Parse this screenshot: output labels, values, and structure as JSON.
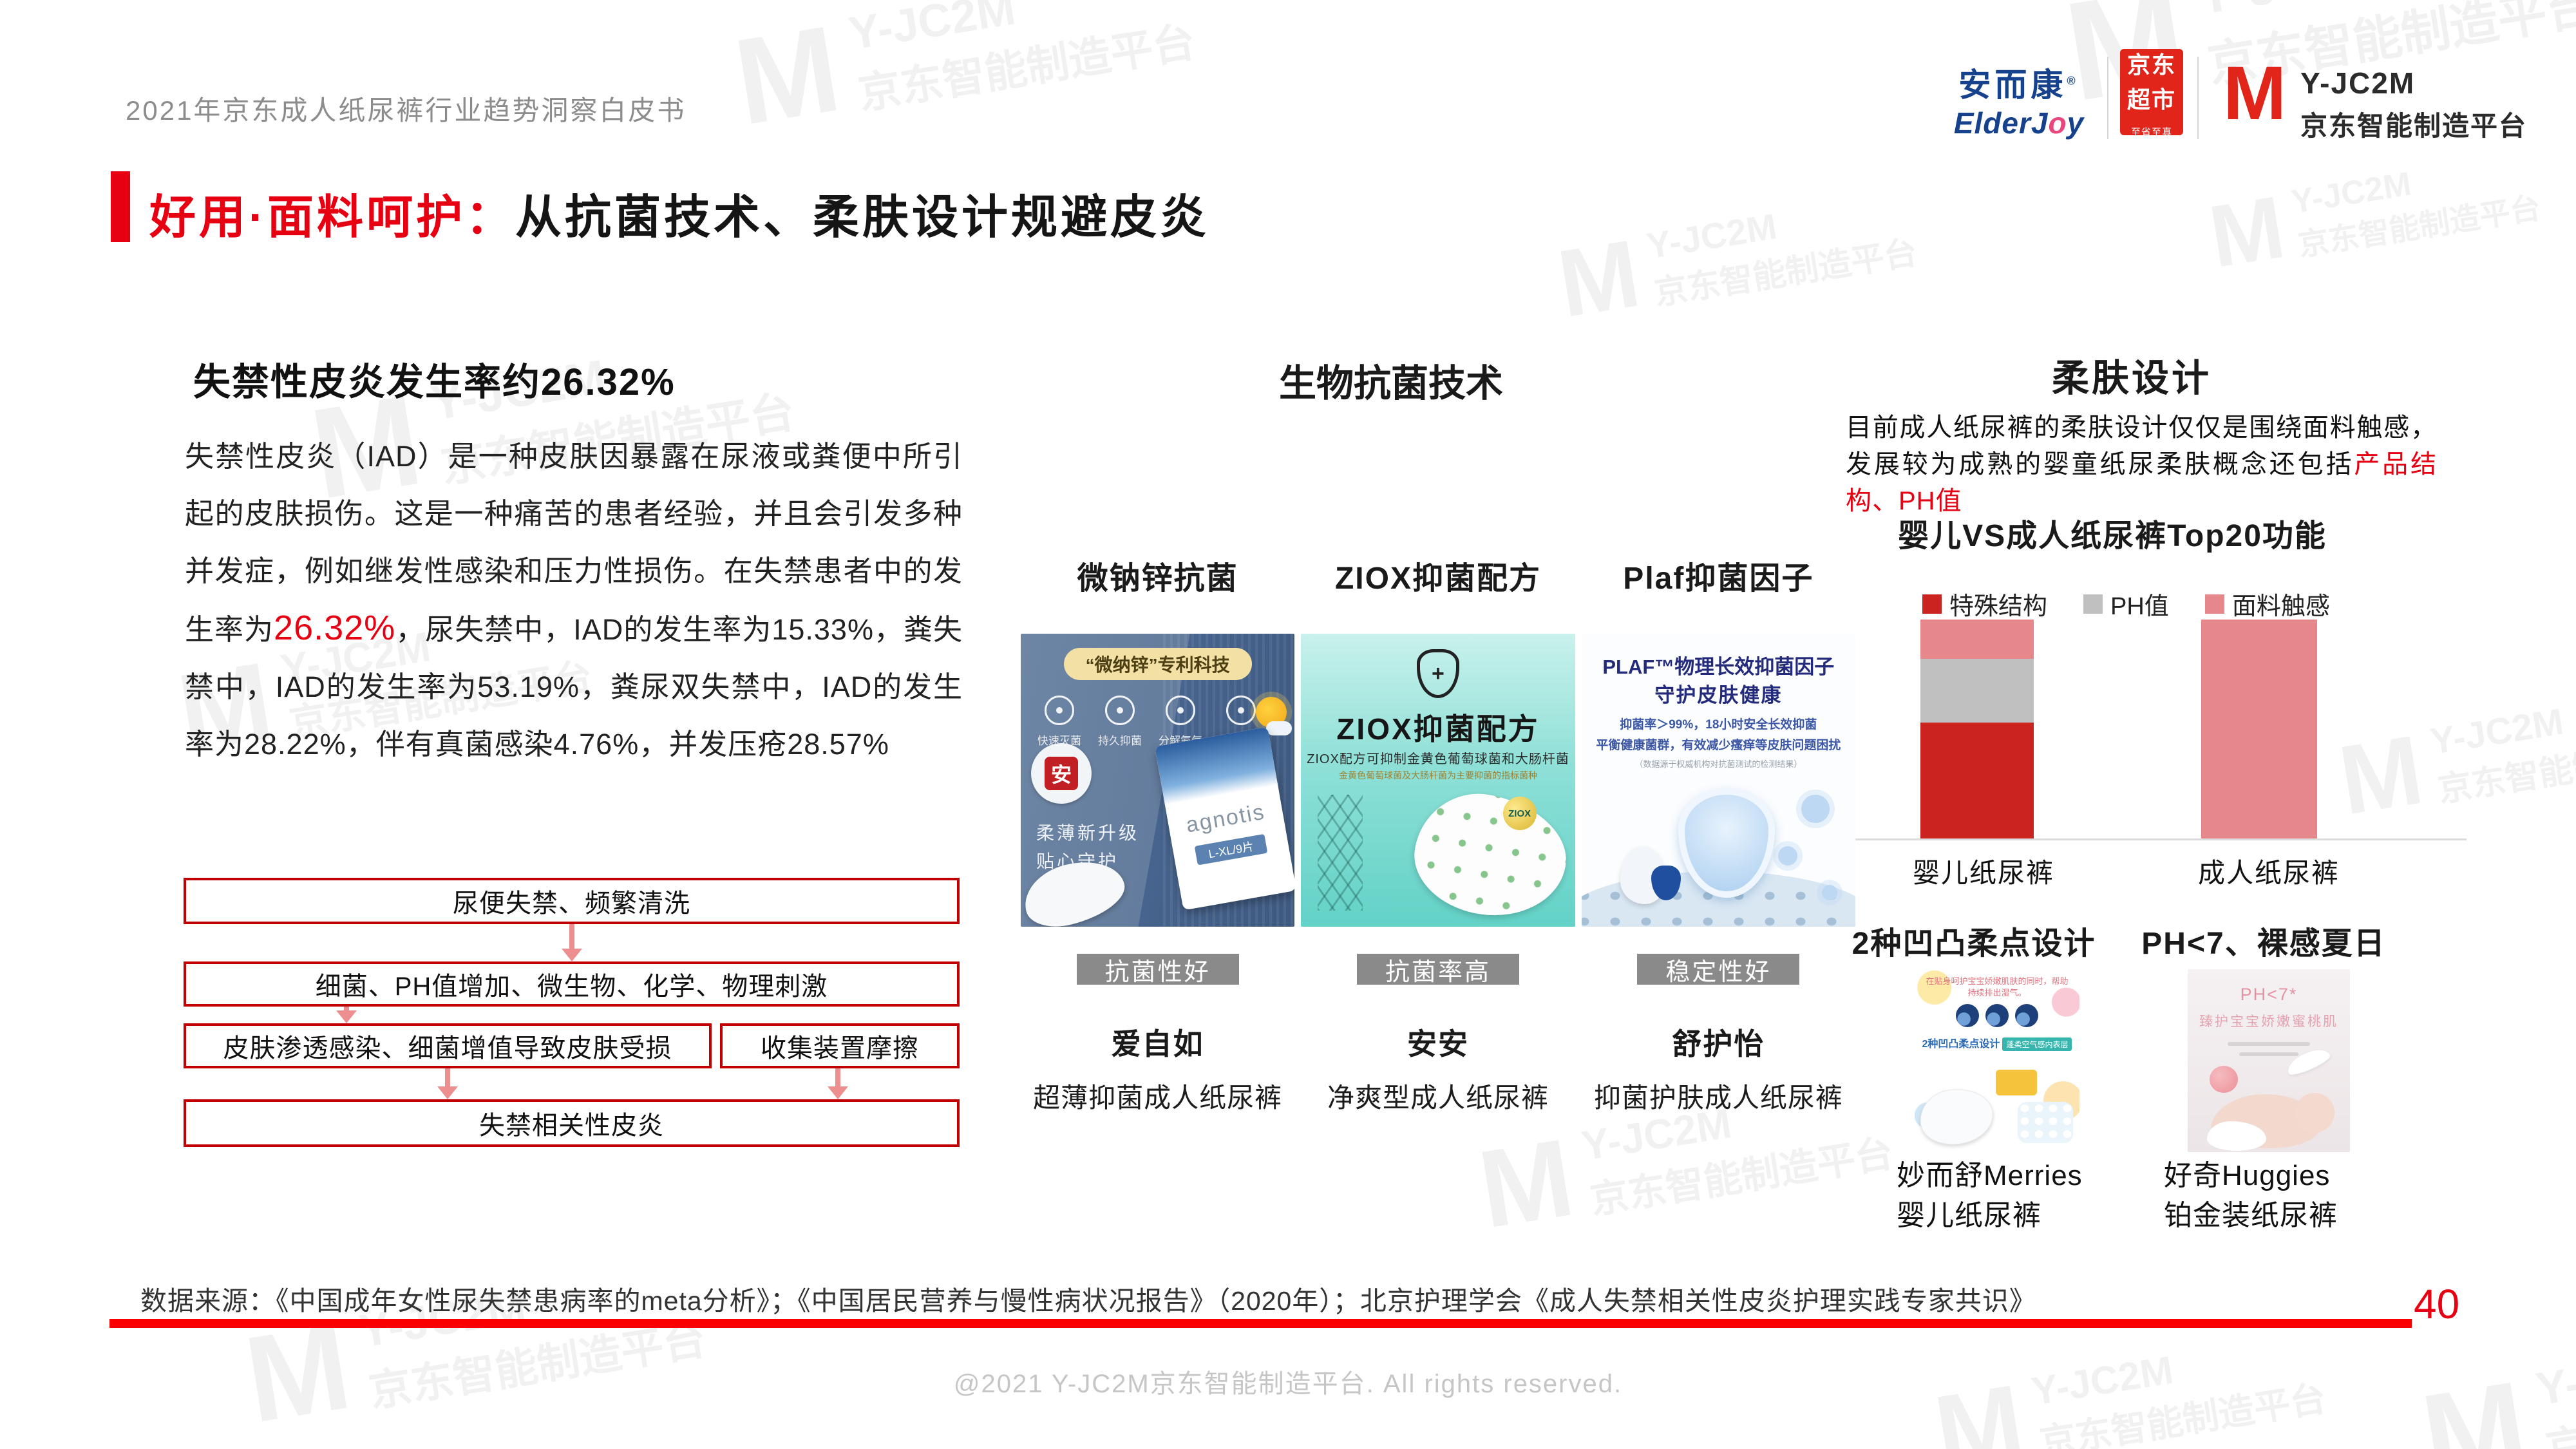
{
  "header": {
    "doc_title": "2021年京东成人纸尿裤行业趋势洞察白皮书"
  },
  "logos": {
    "elderjoy": {
      "cn": "安而康",
      "reg": "®",
      "en1": "ElderJ",
      "heart_o": "o",
      "en2": "y"
    },
    "jd_market": {
      "top": "京东",
      "mid": "超市",
      "bottom": "至省至真"
    },
    "yjc2m": {
      "mark": "M",
      "brand": "Y-JC2M",
      "name": "京东智能制造平台"
    }
  },
  "watermark": {
    "mark": "M",
    "brand": "Y-JC2M",
    "name": "京东智能制造平台"
  },
  "title": {
    "highlight": "好用·面料呵护：",
    "rest": "从抗菌技术、柔肤设计规避皮炎"
  },
  "left": {
    "heading": "失禁性皮炎发生率约26.32%",
    "para_before": "失禁性皮炎（IAD）是一种皮肤因暴露在尿液或粪便中所引起的皮肤损伤。这是一种痛苦的患者经验，并且会引发多种并发症，例如继发性感染和压力性损伤。在失禁患者中的发生率为",
    "para_red": "26.32%",
    "para_after": "，尿失禁中，IAD的发生率为15.33%，粪失禁中，IAD的发生率为53.19%，粪尿双失禁中，IAD的发生率为28.22%，伴有真菌感染4.76%，并发压疮28.57%",
    "flow": [
      "尿便失禁、频繁清洗",
      "细菌、PH值增加、微生物、化学、物理刺激",
      "皮肤渗透感染、细菌增值导致皮肤受损",
      "收集装置摩擦",
      "失禁相关性皮炎"
    ]
  },
  "middle": {
    "heading": "生物抗菌技术",
    "columns": [
      {
        "label": "微钠锌抗菌",
        "tag": "抗菌性好",
        "name": "爱自如",
        "desc": "超薄抑菌成人纸尿裤",
        "poster": {
          "badge": "“微纳锌”专利科技",
          "icons": [
            "快速灭菌",
            "持久抑菌",
            "分解氨气",
            "消除异味"
          ],
          "seal": "安",
          "slogan1": "柔薄新升级",
          "slogan2": "贴心守护",
          "brand": "agnotis",
          "size": "L-XL/9片"
        }
      },
      {
        "label": "ZIOX抑菌配方",
        "tag": "抗菌率高",
        "name": "安安",
        "desc": "净爽型成人纸尿裤",
        "poster": {
          "shield_plus": "+",
          "title": "ZIOX抑菌配方",
          "sub": "ZIOX配方可抑制金黄色葡萄球菌和大肠杆菌",
          "note": "金黄色葡萄球菌及大肠杆菌为主要抑菌的指标菌种",
          "dot": "ZIOX"
        }
      },
      {
        "label": "Plaf抑菌因子",
        "tag": "稳定性好",
        "name": "舒护怡",
        "desc": "抑菌护肤成人纸尿裤",
        "poster": {
          "title1": "PLAF™物理长效抑菌因子",
          "title2": "守护皮肤健康",
          "sub1": "抑菌率＞99%，18小时安全长效抑菌",
          "sub2": "平衡健康菌群，有效减少瘙痒等皮肤问题困扰",
          "note": "（数据源于权威机构对抗菌测试的检测结果）"
        }
      }
    ]
  },
  "right": {
    "heading": "柔肤设计",
    "para_black": "目前成人纸尿裤的柔肤设计仅仅是围绕面料触感，发展较为成熟的婴童纸尿柔肤概念还包括",
    "para_red": "产品结构、PH值",
    "sub_left": {
      "heading": "2种凹凸柔点设计",
      "caption1": "妙而舒Merries",
      "caption2": "婴儿纸尿裤",
      "poster": {
        "top": "在贴身呵护宝宝娇嫩肌肤的同时，帮助持续排出湿气。",
        "mid": "2种凹凸柔点设计",
        "badge": "蓬柔空气感内表层"
      }
    },
    "sub_right": {
      "heading": "PH<7、裸感夏日",
      "caption1": "好奇Huggies",
      "caption2": "铂金装纸尿裤",
      "poster": {
        "line1": "PH<7*",
        "line2": "臻护宝宝娇嫩蜜桃肌"
      }
    }
  },
  "chart_data": {
    "type": "bar",
    "variant": "stacked",
    "title": "婴儿VS成人纸尿裤Top20功能",
    "categories": [
      "婴儿纸尿裤",
      "成人纸尿裤"
    ],
    "series": [
      {
        "name": "特殊结构",
        "color": "#cb2420",
        "values": [
          53,
          0
        ]
      },
      {
        "name": "PH值",
        "color": "#c0c0c0",
        "values": [
          29,
          0
        ]
      },
      {
        "name": "面料触感",
        "color": "#e5878b",
        "values": [
          18,
          100
        ]
      }
    ],
    "unit": "share of Top20 functions (%)",
    "stack_total": 100,
    "legend_position": "top",
    "grid": false
  },
  "footer": {
    "source": "数据来源：《中国成年女性尿失禁患病率的meta分析》；《中国居民营养与慢性病状况报告》（2020年）；北京护理学会《成人失禁相关性皮炎护理实践专家共识》",
    "page": "40",
    "copyright": "@2021 Y-JC2M京东智能制造平台. All rights reserved."
  }
}
